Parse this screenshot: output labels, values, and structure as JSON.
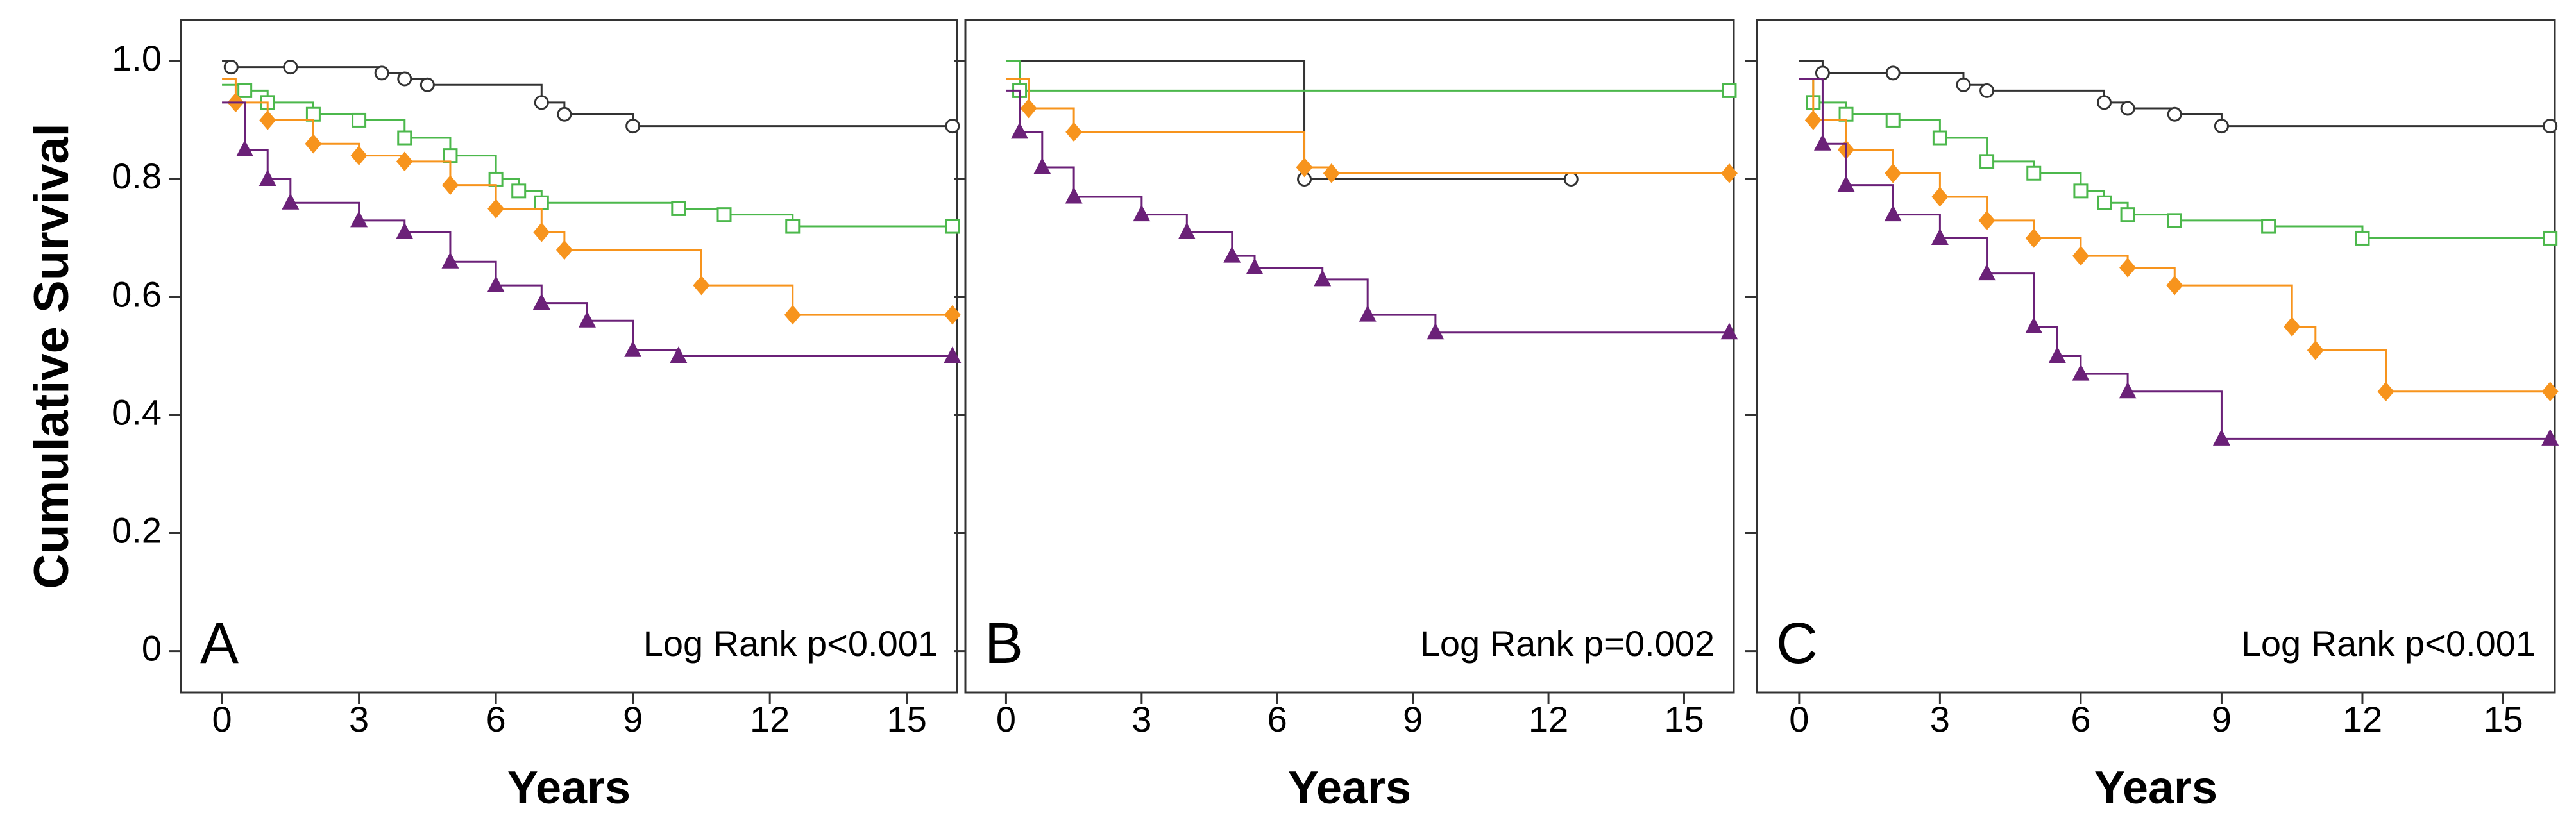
{
  "chart_data": [
    {
      "type": "step",
      "panel_label": "A",
      "annotation": "Log Rank p<0.001",
      "x_label": "Years",
      "y_label": "Cumulative Survival",
      "xlim": [
        -0.9,
        16.1
      ],
      "ylim": [
        -0.07,
        1.07
      ],
      "xticks": [
        0,
        3,
        6,
        9,
        12,
        15
      ],
      "yticks": [
        0,
        0.2,
        0.4,
        0.6,
        0.8,
        {
          "value": 1,
          "label": "1.0"
        }
      ],
      "ytick_labels": true,
      "series": [
        {
          "color": "#333333",
          "marker": "circle",
          "x": [
            0,
            0.2,
            1.5,
            3.5,
            4,
            4.5,
            7,
            7.5,
            9,
            16
          ],
          "values": [
            1.0,
            0.99,
            0.99,
            0.98,
            0.97,
            0.96,
            0.93,
            0.91,
            0.89,
            0.89
          ]
        },
        {
          "color": "#4cb84c",
          "marker": "square",
          "x": [
            0,
            0.5,
            1,
            2,
            3,
            4,
            5,
            6,
            6.5,
            7,
            10,
            11,
            12.5,
            16
          ],
          "values": [
            0.96,
            0.95,
            0.93,
            0.91,
            0.9,
            0.87,
            0.84,
            0.8,
            0.78,
            0.76,
            0.75,
            0.74,
            0.72,
            0.72
          ]
        },
        {
          "color": "#f7941d",
          "marker": "diamond",
          "x": [
            0,
            0.3,
            1,
            2,
            3,
            4,
            5,
            6,
            7,
            7.5,
            10.5,
            12.5,
            16
          ],
          "values": [
            0.97,
            0.93,
            0.9,
            0.86,
            0.84,
            0.83,
            0.79,
            0.75,
            0.71,
            0.68,
            0.62,
            0.57,
            0.57
          ]
        },
        {
          "color": "#6b2178",
          "marker": "triangle",
          "x": [
            0,
            0.5,
            1,
            1.5,
            3,
            4,
            5,
            6,
            7,
            8,
            9,
            10,
            16
          ],
          "values": [
            0.93,
            0.85,
            0.8,
            0.76,
            0.73,
            0.71,
            0.66,
            0.62,
            0.59,
            0.56,
            0.51,
            0.5,
            0.5
          ]
        }
      ]
    },
    {
      "type": "step",
      "panel_label": "B",
      "annotation": "Log Rank p=0.002",
      "x_label": "Years",
      "xlim": [
        -0.9,
        16.1
      ],
      "ylim": [
        -0.07,
        1.07
      ],
      "xticks": [
        0,
        3,
        6,
        9,
        12,
        15
      ],
      "yticks": [
        0,
        0.2,
        0.4,
        0.6,
        0.8,
        1
      ],
      "ytick_labels": false,
      "series": [
        {
          "color": "#333333",
          "marker": "circle",
          "x": [
            0,
            6.6,
            12.5
          ],
          "values": [
            1.0,
            0.8,
            0.8
          ]
        },
        {
          "color": "#4cb84c",
          "marker": "square",
          "x": [
            0,
            0.3,
            16
          ],
          "values": [
            1.0,
            0.95,
            0.95
          ]
        },
        {
          "color": "#f7941d",
          "marker": "diamond",
          "x": [
            0,
            0.5,
            1.5,
            6.6,
            7.2,
            16
          ],
          "values": [
            0.97,
            0.92,
            0.88,
            0.82,
            0.81,
            0.81
          ]
        },
        {
          "color": "#6b2178",
          "marker": "triangle",
          "x": [
            0,
            0.3,
            0.8,
            1.5,
            3,
            4,
            5,
            5.5,
            7,
            8,
            9.5,
            16
          ],
          "values": [
            0.95,
            0.88,
            0.82,
            0.77,
            0.74,
            0.71,
            0.67,
            0.65,
            0.63,
            0.57,
            0.54,
            0.54
          ]
        }
      ]
    },
    {
      "type": "step",
      "panel_label": "C",
      "annotation": "Log Rank p<0.001",
      "x_label": "Years",
      "xlim": [
        -0.9,
        16.1
      ],
      "ylim": [
        -0.07,
        1.07
      ],
      "xticks": [
        0,
        3,
        6,
        9,
        12,
        15
      ],
      "yticks": [
        0,
        0.2,
        0.4,
        0.6,
        0.8,
        1
      ],
      "ytick_labels": false,
      "series": [
        {
          "color": "#333333",
          "marker": "circle",
          "x": [
            0,
            0.5,
            2,
            3.5,
            4,
            6.5,
            7,
            8,
            9,
            16
          ],
          "values": [
            1.0,
            0.98,
            0.98,
            0.96,
            0.95,
            0.93,
            0.92,
            0.91,
            0.89,
            0.89
          ]
        },
        {
          "color": "#4cb84c",
          "marker": "square",
          "x": [
            0,
            0.3,
            1,
            2,
            3,
            4,
            5,
            6,
            6.5,
            7,
            8,
            10,
            12,
            16
          ],
          "values": [
            0.97,
            0.93,
            0.91,
            0.9,
            0.87,
            0.83,
            0.81,
            0.78,
            0.76,
            0.74,
            0.73,
            0.72,
            0.7,
            0.7
          ]
        },
        {
          "color": "#f7941d",
          "marker": "diamond",
          "x": [
            0,
            0.3,
            1,
            2,
            3,
            4,
            5,
            6,
            7,
            8,
            10.5,
            11,
            12.5,
            16
          ],
          "values": [
            0.97,
            0.9,
            0.85,
            0.81,
            0.77,
            0.73,
            0.7,
            0.67,
            0.65,
            0.62,
            0.55,
            0.51,
            0.44,
            0.44
          ]
        },
        {
          "color": "#6b2178",
          "marker": "triangle",
          "x": [
            0,
            0.5,
            1,
            2,
            3,
            4,
            5,
            5.5,
            6,
            7,
            9,
            16
          ],
          "values": [
            0.97,
            0.86,
            0.79,
            0.74,
            0.7,
            0.64,
            0.55,
            0.5,
            0.47,
            0.44,
            0.36,
            0.36
          ]
        }
      ]
    }
  ]
}
